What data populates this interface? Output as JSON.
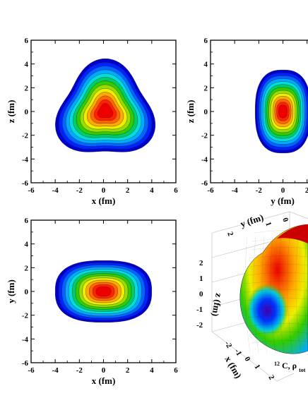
{
  "chart_data": [
    {
      "type": "heatmap",
      "title": "",
      "xlabel": "x (fm)",
      "ylabel": "z (fm)",
      "xlim": [
        -6,
        6
      ],
      "ylim": [
        -6,
        6
      ],
      "xticks": [
        "-6",
        "-4",
        "-2",
        "0",
        "2",
        "4",
        "6"
      ],
      "yticks": [
        "6",
        "4",
        "2",
        "0",
        "-2",
        "-4",
        "-6"
      ],
      "shape": "triangular",
      "levels": 12
    },
    {
      "type": "heatmap",
      "title": "",
      "xlabel": "y (fm)",
      "ylabel": "z (fm)",
      "xlim": [
        -6,
        6
      ],
      "ylim": [
        -6,
        6
      ],
      "xticks": [
        "-6",
        "-4",
        "-2",
        "0",
        "2"
      ],
      "yticks": [
        "6",
        "4",
        "2",
        "0",
        "-2",
        "-4",
        "-6"
      ],
      "shape": "vertical-oval",
      "levels": 12
    },
    {
      "type": "heatmap",
      "title": "",
      "xlabel": "x (fm)",
      "ylabel": "y (fm)",
      "xlim": [
        -6,
        6
      ],
      "ylim": [
        -6,
        6
      ],
      "xticks": [
        "-6",
        "-4",
        "-2",
        "0",
        "2",
        "4",
        "6"
      ],
      "yticks": [
        "6",
        "4",
        "2",
        "0",
        "-2",
        "-4",
        "-6"
      ],
      "shape": "horizontal-oval",
      "levels": 12
    },
    {
      "type": "surface3d",
      "xlabel": "x (fm)",
      "ylabel": "y (fm)",
      "zlabel": "z (fm)",
      "ytick_labels": [
        "2",
        "1",
        "0",
        "-1",
        "-2"
      ],
      "ztick_labels": [
        "2",
        "1",
        "0",
        "-1",
        "-2"
      ],
      "xtick_labels": [
        "-2",
        "-1",
        "0",
        "1",
        "2"
      ],
      "annotation_prefix": "12",
      "annotation_text": "C, ρ",
      "annotation_sub": "tot"
    }
  ],
  "colors": [
    "#0000cc",
    "#0022ff",
    "#0066ff",
    "#00aaff",
    "#00dddd",
    "#00cc66",
    "#33cc00",
    "#99dd00",
    "#eeee00",
    "#ffaa00",
    "#ff6600",
    "#ff2200",
    "#ee0000"
  ]
}
